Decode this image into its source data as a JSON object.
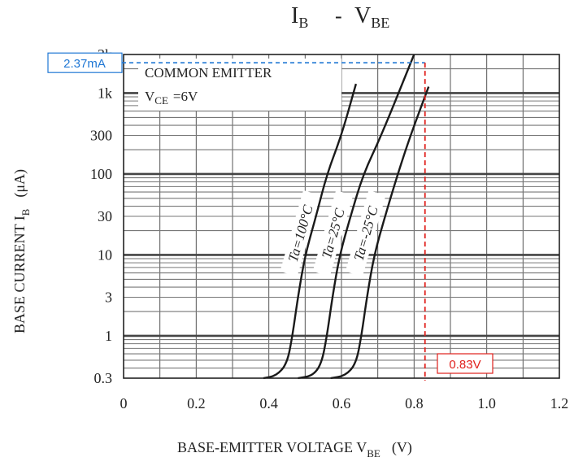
{
  "chart_data": {
    "type": "line",
    "title": "I",
    "title_sub": "B",
    "title_sep": "-",
    "title_right": "V",
    "title_right_sub": "BE",
    "xlabel": "BASE-EMITTER VOLTAGE V",
    "xlabel_sub": "BE",
    "xlabel_unit": "(V)",
    "ylabel": "BASE CURRENT I",
    "ylabel_sub": "B",
    "ylabel_unit": "(μA)",
    "xlim": [
      0,
      1.2
    ],
    "ylim": [
      0.3,
      3000
    ],
    "yscale": "log",
    "grid": true,
    "x_ticks": [
      {
        "value": 0,
        "label": "0"
      },
      {
        "value": 0.2,
        "label": "0.2"
      },
      {
        "value": 0.4,
        "label": "0.4"
      },
      {
        "value": 0.6,
        "label": "0.6"
      },
      {
        "value": 0.8,
        "label": "0.8"
      },
      {
        "value": 1.0,
        "label": "1.0"
      },
      {
        "value": 1.2,
        "label": "1.2"
      }
    ],
    "y_ticks": [
      {
        "value": 0.3,
        "label": "0.3"
      },
      {
        "value": 1,
        "label": "1"
      },
      {
        "value": 3,
        "label": "3"
      },
      {
        "value": 10,
        "label": "10"
      },
      {
        "value": 30,
        "label": "30"
      },
      {
        "value": 100,
        "label": "100"
      },
      {
        "value": 300,
        "label": "300"
      },
      {
        "value": 1000,
        "label": "1k"
      },
      {
        "value": 3000,
        "label": "3k"
      }
    ],
    "legend_box": {
      "line1": "COMMON EMITTER",
      "line2_main": "V",
      "line2_sub": "CE",
      "line2_rest": "=6V"
    },
    "series": [
      {
        "name": "Ta=100°C",
        "x": [
          0.385,
          0.42,
          0.45,
          0.465,
          0.48,
          0.5,
          0.53,
          0.56,
          0.6,
          0.64
        ],
        "y": [
          0.3,
          0.32,
          0.45,
          1.0,
          3.0,
          10,
          30,
          100,
          300,
          1300
        ]
      },
      {
        "name": "Ta=25°C",
        "x": [
          0.48,
          0.52,
          0.545,
          0.56,
          0.575,
          0.595,
          0.625,
          0.66,
          0.71,
          0.8
        ],
        "y": [
          0.3,
          0.32,
          0.45,
          1.0,
          3.0,
          10,
          30,
          100,
          300,
          3000
        ]
      },
      {
        "name": "Ta=-25°C",
        "x": [
          0.57,
          0.61,
          0.64,
          0.655,
          0.67,
          0.69,
          0.72,
          0.755,
          0.79,
          0.84
        ],
        "y": [
          0.3,
          0.32,
          0.45,
          1.0,
          3.0,
          10,
          30,
          100,
          300,
          1200
        ]
      }
    ],
    "annotations": [
      {
        "label": "2.37mA",
        "x": 0.83,
        "y": 2370,
        "color": "#1f77d4"
      },
      {
        "label": "0.83V",
        "x": 0.83,
        "y": 0.3,
        "color": "#e0201c"
      }
    ]
  }
}
